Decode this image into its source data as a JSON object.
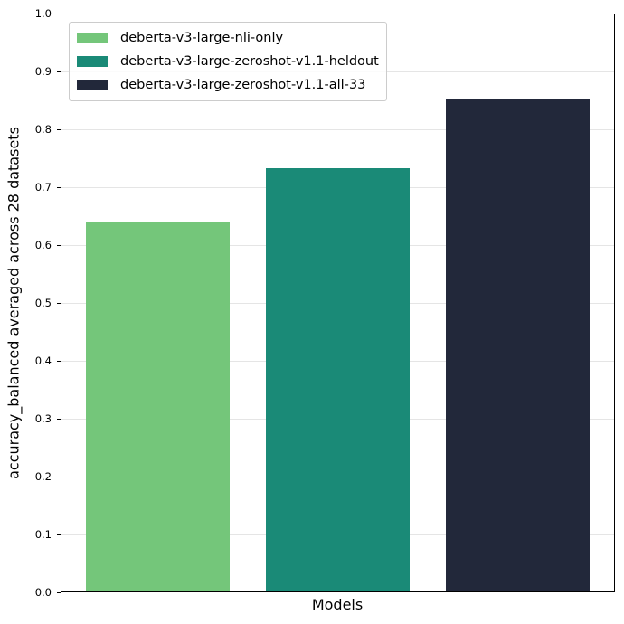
{
  "chart_data": {
    "type": "bar",
    "title": "",
    "xlabel": "Models",
    "ylabel": "accuracy_balanced averaged across 28 datasets",
    "ylim": [
      0.0,
      1.0
    ],
    "yticks": [
      "0.0",
      "0.1",
      "0.2",
      "0.3",
      "0.4",
      "0.5",
      "0.6",
      "0.7",
      "0.8",
      "0.9",
      "1.0"
    ],
    "grid": "y",
    "legend_position": "upper left",
    "categories": [
      "deberta-v3-large-nli-only",
      "deberta-v3-large-zeroshot-v1.1-heldout",
      "deberta-v3-large-zeroshot-v1.1-all-33"
    ],
    "values": [
      0.641,
      0.733,
      0.852
    ],
    "colors": [
      "#74c67a",
      "#1a8a77",
      "#22283a"
    ]
  },
  "legend": [
    {
      "label": "deberta-v3-large-nli-only",
      "color": "#74c67a"
    },
    {
      "label": "deberta-v3-large-zeroshot-v1.1-heldout",
      "color": "#1a8a77"
    },
    {
      "label": "deberta-v3-large-zeroshot-v1.1-all-33",
      "color": "#22283a"
    }
  ]
}
